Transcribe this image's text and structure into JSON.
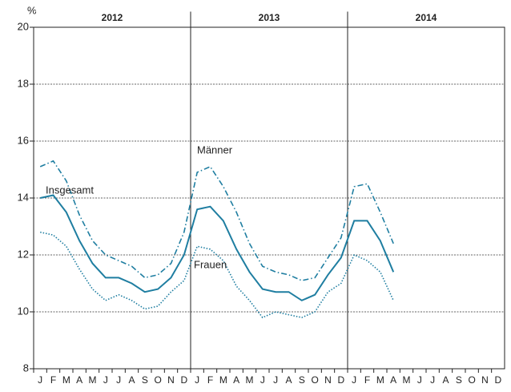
{
  "chart_data": {
    "type": "line",
    "y_label": "%",
    "groups": [
      "2012",
      "2013",
      "2014"
    ],
    "categories": [
      "J",
      "F",
      "M",
      "A",
      "M",
      "J",
      "J",
      "A",
      "S",
      "O",
      "N",
      "D",
      "J",
      "F",
      "M",
      "A",
      "M",
      "J",
      "J",
      "A",
      "S",
      "O",
      "N",
      "D",
      "J",
      "F",
      "M",
      "A",
      "M",
      "J",
      "J",
      "A",
      "S",
      "O",
      "N",
      "D"
    ],
    "ylim": [
      8,
      20
    ],
    "yticks": [
      8,
      10,
      12,
      14,
      16,
      18,
      20
    ],
    "grid": true,
    "series": [
      {
        "name": "Männer",
        "color": "#1f7ea1",
        "line_style": "dashdot",
        "values": [
          15.1,
          15.3,
          14.6,
          13.4,
          12.5,
          12.0,
          11.8,
          11.6,
          11.2,
          11.3,
          11.7,
          12.8,
          14.9,
          15.1,
          14.4,
          13.5,
          12.4,
          11.6,
          11.4,
          11.3,
          11.1,
          11.2,
          11.9,
          12.6,
          14.4,
          14.5,
          13.5,
          12.4,
          null,
          null,
          null,
          null,
          null,
          null,
          null,
          null
        ]
      },
      {
        "name": "Insgesamt",
        "color": "#1f7ea1",
        "line_style": "solid",
        "values": [
          14.0,
          14.1,
          13.5,
          12.5,
          11.7,
          11.2,
          11.2,
          11.0,
          10.7,
          10.8,
          11.2,
          12.0,
          13.6,
          13.7,
          13.2,
          12.2,
          11.4,
          10.8,
          10.7,
          10.7,
          10.4,
          10.6,
          11.3,
          11.9,
          13.2,
          13.2,
          12.5,
          11.4,
          null,
          null,
          null,
          null,
          null,
          null,
          null,
          null
        ]
      },
      {
        "name": "Frauen",
        "color": "#1f7ea1",
        "line_style": "dotted",
        "values": [
          12.8,
          12.7,
          12.3,
          11.5,
          10.8,
          10.4,
          10.6,
          10.4,
          10.1,
          10.2,
          10.7,
          11.1,
          12.3,
          12.2,
          11.8,
          10.9,
          10.4,
          9.8,
          10.0,
          9.9,
          9.8,
          10.0,
          10.7,
          11.0,
          12.0,
          11.8,
          11.4,
          10.4,
          null,
          null,
          null,
          null,
          null,
          null,
          null,
          null
        ]
      }
    ]
  }
}
